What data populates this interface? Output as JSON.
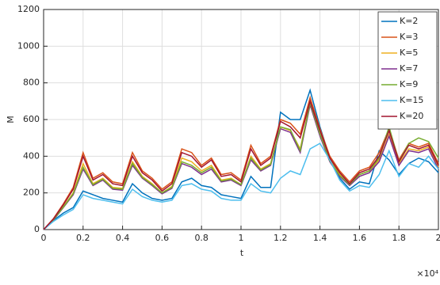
{
  "chart_data": {
    "type": "line",
    "xlabel": "t",
    "ylabel": "M",
    "x_exponent": "×10⁴",
    "x": [
      0,
      0.05,
      0.1,
      0.15,
      0.2,
      0.25,
      0.3,
      0.35,
      0.4,
      0.45,
      0.5,
      0.55,
      0.6,
      0.65,
      0.7,
      0.75,
      0.8,
      0.85,
      0.9,
      0.95,
      1,
      1.05,
      1.1,
      1.15,
      1.2,
      1.25,
      1.3,
      1.35,
      1.4,
      1.45,
      1.5,
      1.55,
      1.6,
      1.65,
      1.7,
      1.75,
      1.8,
      1.85,
      1.9,
      1.95,
      2
    ],
    "series": [
      {
        "name": "K=2",
        "color": "#0072BD",
        "values": [
          0,
          50,
          90,
          120,
          210,
          190,
          170,
          160,
          150,
          250,
          200,
          170,
          160,
          170,
          260,
          280,
          240,
          230,
          190,
          180,
          170,
          290,
          230,
          230,
          640,
          600,
          600,
          760,
          560,
          390,
          280,
          220,
          260,
          250,
          430,
          380,
          300,
          360,
          390,
          370,
          310
        ]
      },
      {
        "name": "K=3",
        "color": "#D95319",
        "values": [
          0,
          60,
          140,
          230,
          420,
          280,
          310,
          260,
          250,
          420,
          320,
          280,
          220,
          260,
          440,
          420,
          350,
          390,
          300,
          310,
          270,
          460,
          360,
          400,
          600,
          580,
          520,
          720,
          550,
          400,
          320,
          260,
          320,
          340,
          420,
          550,
          380,
          470,
          450,
          470,
          360
        ]
      },
      {
        "name": "K=5",
        "color": "#EDB120",
        "values": [
          0,
          55,
          125,
          200,
          360,
          250,
          280,
          230,
          225,
          370,
          290,
          250,
          200,
          235,
          390,
          370,
          320,
          350,
          270,
          280,
          245,
          400,
          330,
          360,
          560,
          540,
          440,
          690,
          520,
          380,
          300,
          245,
          300,
          320,
          380,
          520,
          360,
          440,
          430,
          450,
          340
        ]
      },
      {
        "name": "K=7",
        "color": "#7E2F8E",
        "values": [
          0,
          52,
          120,
          190,
          330,
          240,
          270,
          220,
          215,
          350,
          280,
          240,
          195,
          225,
          360,
          340,
          300,
          330,
          260,
          270,
          240,
          380,
          320,
          350,
          550,
          530,
          420,
          680,
          510,
          370,
          290,
          240,
          290,
          310,
          370,
          510,
          350,
          430,
          420,
          440,
          330
        ]
      },
      {
        "name": "K=9",
        "color": "#77AC30",
        "values": [
          0,
          54,
          122,
          195,
          340,
          245,
          275,
          225,
          220,
          360,
          285,
          245,
          200,
          230,
          370,
          350,
          310,
          340,
          265,
          275,
          245,
          390,
          325,
          355,
          560,
          545,
          430,
          690,
          520,
          375,
          295,
          245,
          300,
          320,
          390,
          560,
          370,
          470,
          500,
          480,
          390
        ]
      },
      {
        "name": "K=15",
        "color": "#4DBEEE",
        "values": [
          0,
          45,
          80,
          110,
          190,
          170,
          160,
          150,
          140,
          220,
          180,
          160,
          150,
          160,
          240,
          250,
          220,
          210,
          170,
          160,
          160,
          250,
          210,
          200,
          280,
          320,
          300,
          440,
          470,
          380,
          270,
          210,
          240,
          230,
          300,
          430,
          290,
          360,
          340,
          400,
          330
        ]
      },
      {
        "name": "K=20",
        "color": "#A2142F",
        "values": [
          0,
          58,
          135,
          220,
          400,
          270,
          300,
          250,
          240,
          400,
          310,
          270,
          210,
          250,
          420,
          400,
          340,
          380,
          290,
          300,
          260,
          440,
          350,
          390,
          590,
          560,
          500,
          700,
          540,
          390,
          310,
          250,
          310,
          330,
          400,
          540,
          370,
          460,
          440,
          460,
          350
        ]
      }
    ],
    "xlim": [
      0,
      2
    ],
    "xticks": [
      0,
      0.2,
      0.4,
      0.6,
      0.8,
      1,
      1.2,
      1.4,
      1.6,
      1.8,
      2
    ],
    "ylim": [
      0,
      1200
    ],
    "yticks": [
      0,
      200,
      400,
      600,
      800,
      1000,
      1200
    ],
    "grid": true,
    "legend": "top-right"
  }
}
